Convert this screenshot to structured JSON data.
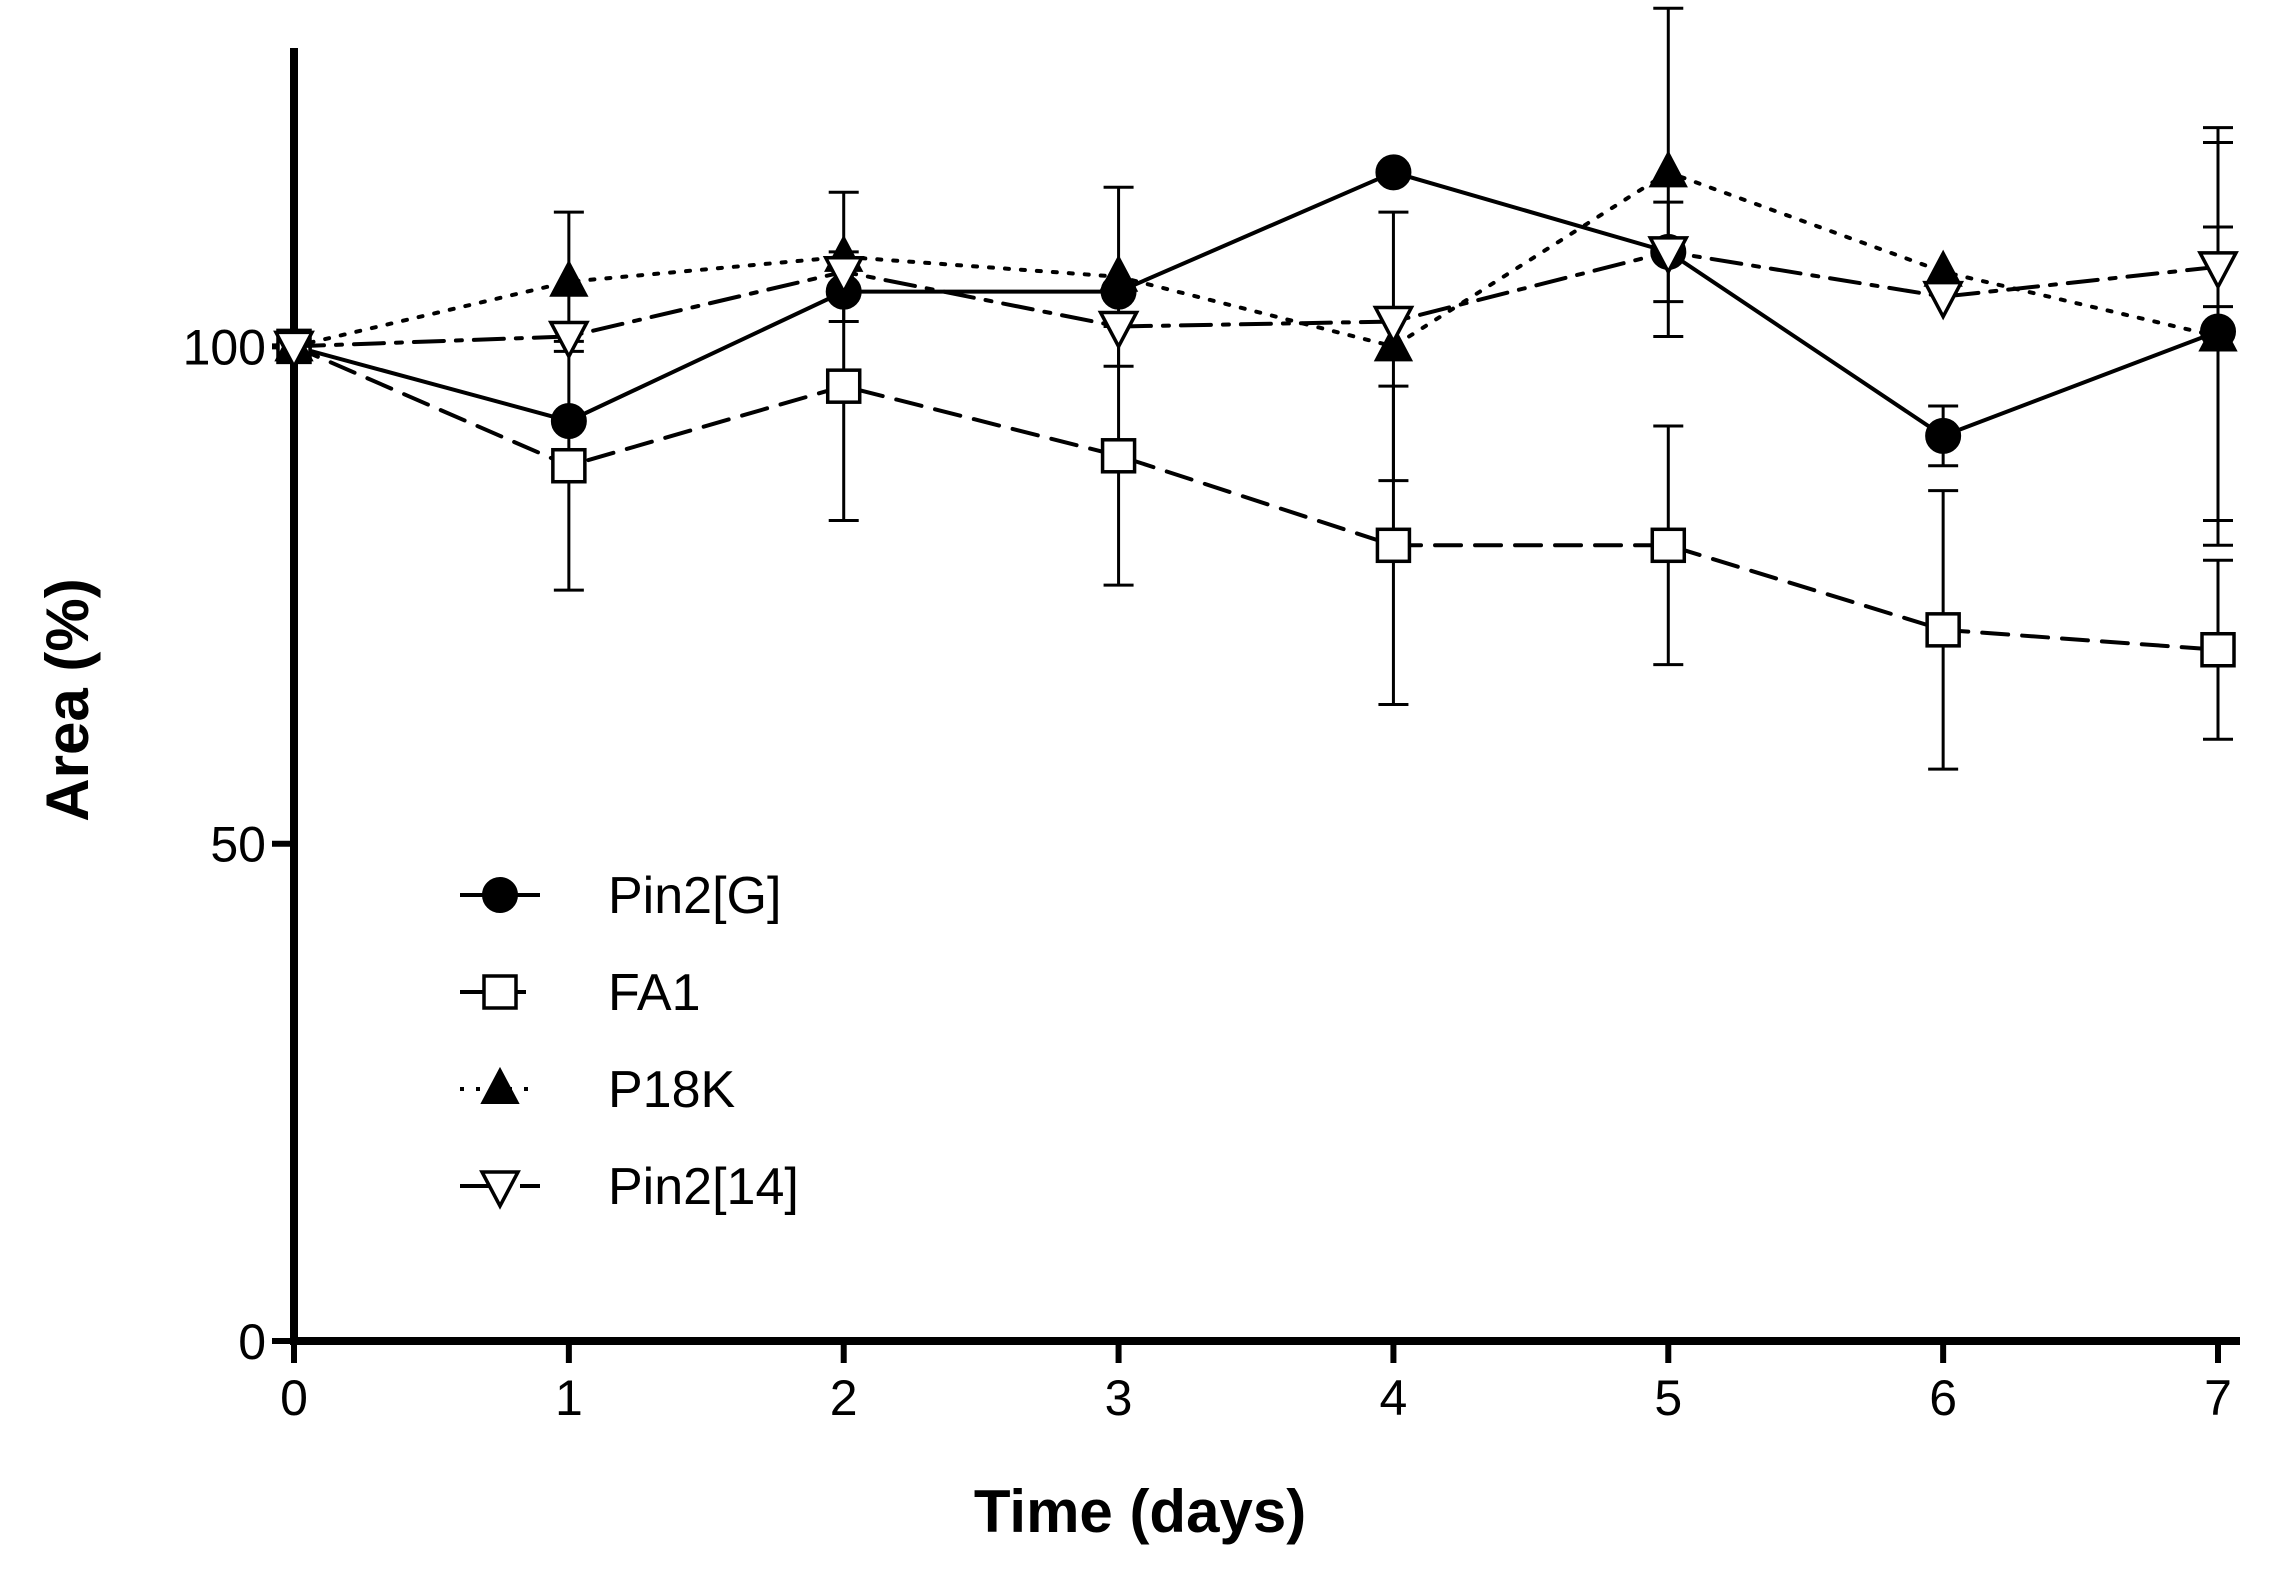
{
  "chart_data": {
    "type": "line",
    "title": "",
    "xlabel": "Time (days)",
    "ylabel": "Area (%)",
    "xlim": [
      0,
      7
    ],
    "ylim": [
      0,
      130
    ],
    "x_ticks": [
      "0",
      "1",
      "2",
      "3",
      "4",
      "5",
      "6",
      "7"
    ],
    "y_ticks": [
      "0",
      "50",
      "100"
    ],
    "grid": false,
    "legend_position": "lower-left",
    "x": [
      0,
      1,
      2,
      3,
      4,
      5,
      6,
      7
    ],
    "series": [
      {
        "name": "Pin2[G]",
        "marker": "filled-circle",
        "line": "solid",
        "values": [
          100,
          92.5,
          105.5,
          105.5,
          117.5,
          109.5,
          91,
          101.5
        ],
        "error": [
          0,
          0,
          0,
          0,
          0,
          0,
          3,
          19
        ]
      },
      {
        "name": "FA1",
        "marker": "open-square",
        "line": "dashed",
        "values": [
          100,
          88,
          96,
          89,
          80,
          80,
          71.5,
          69.5
        ],
        "error": [
          0,
          12.5,
          13.5,
          13,
          16,
          12,
          14,
          9
        ]
      },
      {
        "name": "P18K",
        "marker": "filled-triangle-up",
        "line": "dotted",
        "values": [
          100,
          106.5,
          109,
          107,
          100,
          117.5,
          107.5,
          101
        ],
        "error": [
          0,
          7,
          6.5,
          9,
          13.5,
          16.5,
          0,
          21
        ]
      },
      {
        "name": "Pin2[14]",
        "marker": "open-triangle-down",
        "line": "dash-dot",
        "values": [
          100,
          101,
          107.5,
          102,
          102.5,
          109.5,
          105,
          108
        ],
        "error": [
          0,
          0,
          0,
          0,
          0,
          5,
          0,
          4
        ]
      }
    ]
  }
}
